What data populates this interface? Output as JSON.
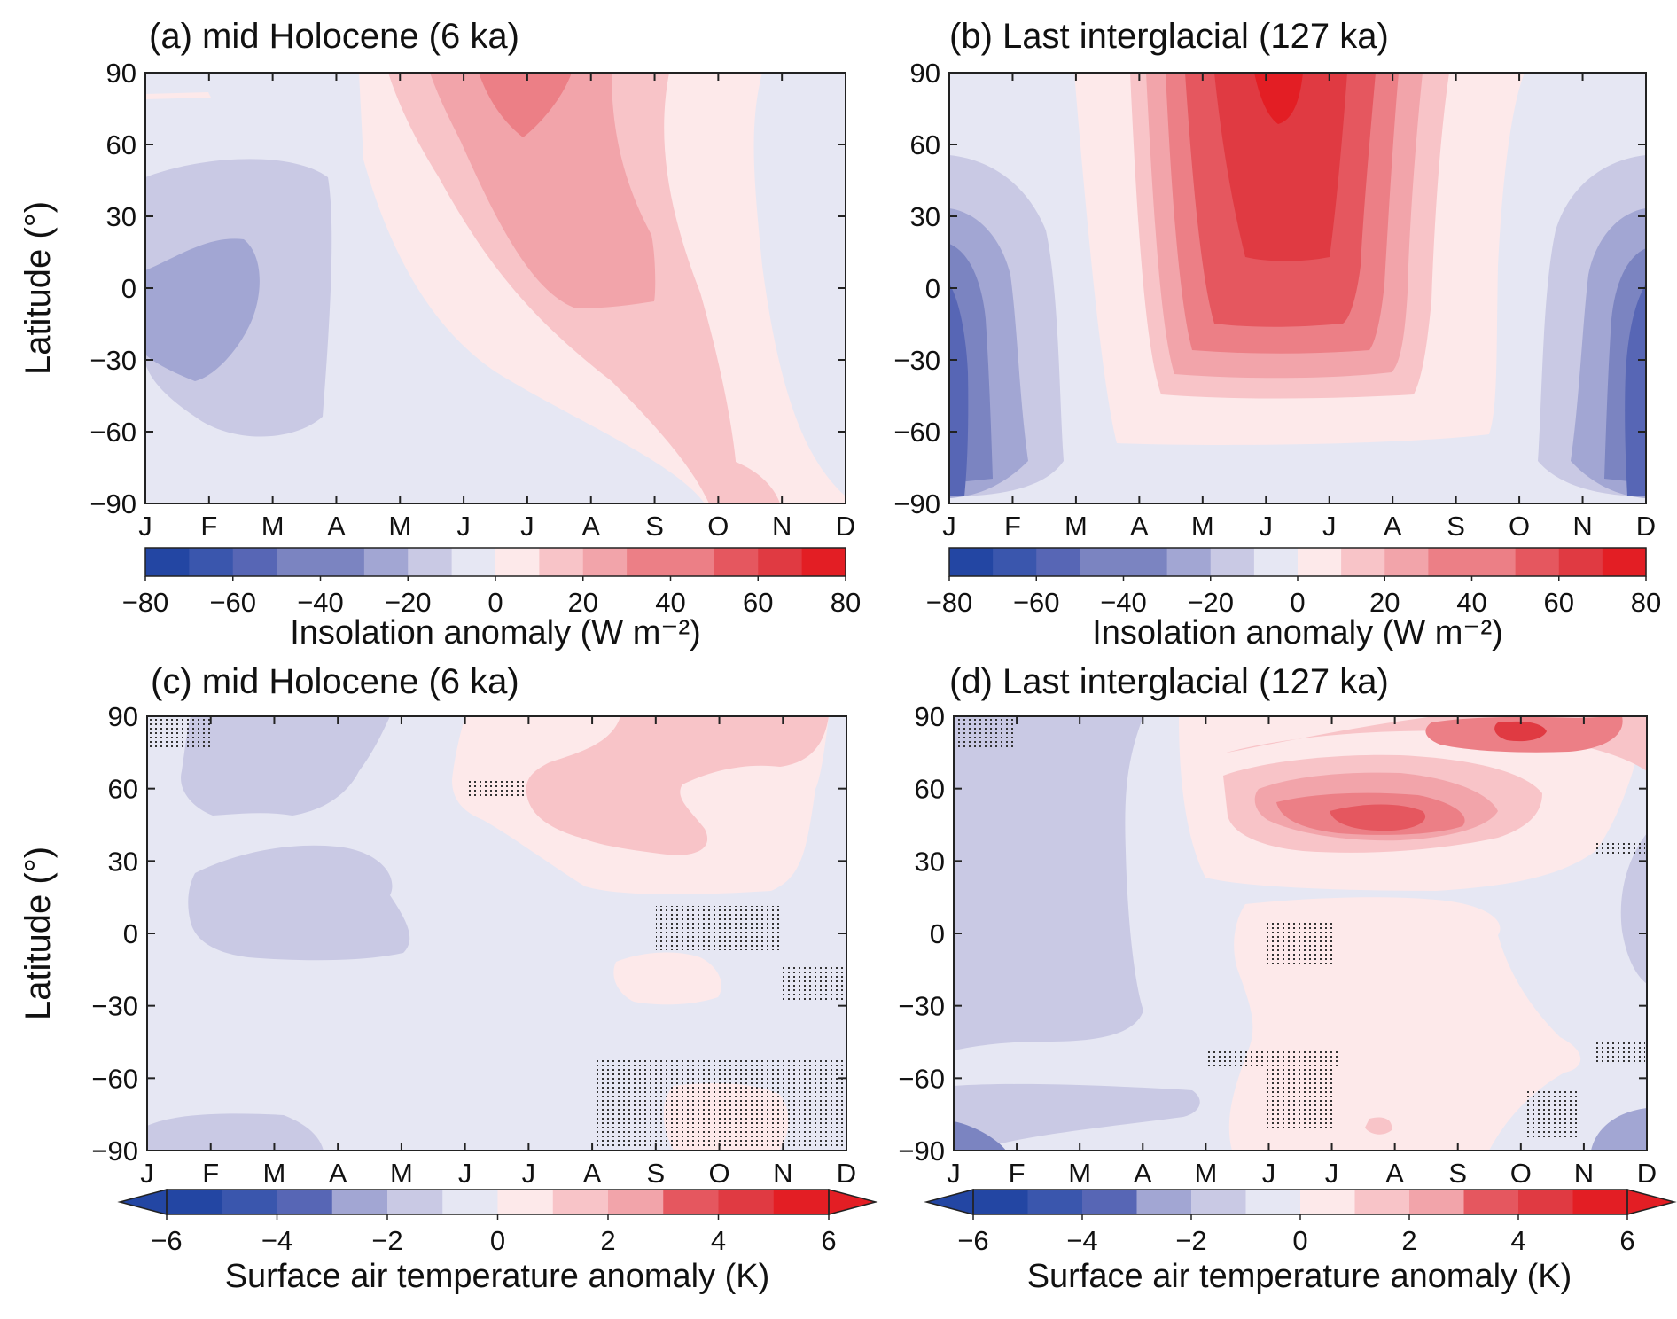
{
  "figure": {
    "palette_blue_to_red": [
      "#2346a3",
      "#3a56ad",
      "#5766b5",
      "#7b84c1",
      "#a2a6d3",
      "#c9c9e4",
      "#e6e7f3",
      "#fde9ea",
      "#f8c4c8",
      "#f2a4aa",
      "#ec7f86",
      "#e5575f",
      "#e03a42",
      "#e31e24"
    ],
    "hatch_color": "#333333"
  },
  "chart_data": [
    {
      "id": "a",
      "type": "heatmap",
      "title": "(a) mid Holocene (6 ka)",
      "xlabel": "",
      "ylabel": "Latitude (°)",
      "x_tick_labels": [
        "J",
        "F",
        "M",
        "A",
        "M",
        "J",
        "J",
        "A",
        "S",
        "O",
        "N",
        "D"
      ],
      "y_ticks": [
        90,
        60,
        30,
        0,
        -30,
        -60,
        -90
      ],
      "y_tick_labels": [
        "90",
        "60",
        "30",
        "0",
        "−30",
        "−60",
        "−90"
      ],
      "ylim": [
        -90,
        90
      ],
      "colorbar": {
        "label": "Insolation anomaly (W m⁻²)",
        "bounds": [
          -80,
          80
        ],
        "step": 10,
        "ticks": [
          -80,
          -60,
          -40,
          -20,
          0,
          20,
          40,
          60,
          80
        ],
        "tick_labels": [
          "−80",
          "−60",
          "−40",
          "−20",
          "0",
          "20",
          "40",
          "60",
          "80"
        ],
        "extend": false
      },
      "grid": false,
      "field_description": "Positive anomaly band runs diagonally from boreal summer at high northern latitudes toward austral spring at high southern latitudes; maximum ~30–40 W m⁻² near 60–90°N in June–July; negative ~−20 to −30 W m⁻² in January–February in the tropics and southern hemisphere"
    },
    {
      "id": "b",
      "type": "heatmap",
      "title": "(b) Last interglacial (127 ka)",
      "xlabel": "",
      "ylabel": "",
      "x_tick_labels": [
        "J",
        "F",
        "M",
        "A",
        "M",
        "J",
        "J",
        "A",
        "S",
        "O",
        "N",
        "D"
      ],
      "y_ticks": [
        90,
        60,
        30,
        0,
        -30,
        -60,
        -90
      ],
      "y_tick_labels": [
        "90",
        "60",
        "30",
        "0",
        "−30",
        "−60",
        "−90"
      ],
      "ylim": [
        -90,
        90
      ],
      "colorbar": {
        "label": "Insolation anomaly (W m⁻²)",
        "bounds": [
          -80,
          80
        ],
        "step": 10,
        "ticks": [
          -80,
          -60,
          -40,
          -20,
          0,
          20,
          40,
          60,
          80
        ],
        "tick_labels": [
          "−80",
          "−60",
          "−40",
          "−20",
          "0",
          "20",
          "40",
          "60",
          "80"
        ],
        "extend": false
      },
      "grid": false,
      "field_description": "Strong positive anomaly centered on June at 60–90°N reaching ~70 W m⁻², extending across the tropics to ~30°S with values 20–60 W m⁻²; strong negative anomaly up to ~−60 W m⁻² in January and December in the tropics and southern hemisphere"
    },
    {
      "id": "c",
      "type": "heatmap",
      "title": "(c) mid Holocene (6 ka)",
      "xlabel": "",
      "ylabel": "Latitude (°)",
      "x_tick_labels": [
        "J",
        "F",
        "M",
        "A",
        "M",
        "J",
        "J",
        "A",
        "S",
        "O",
        "N",
        "D"
      ],
      "y_ticks": [
        90,
        60,
        30,
        0,
        -30,
        -60,
        -90
      ],
      "y_tick_labels": [
        "90",
        "60",
        "30",
        "0",
        "−30",
        "−60",
        "−90"
      ],
      "ylim": [
        -90,
        90
      ],
      "colorbar": {
        "label": "Surface air temperature anomaly (K)",
        "bounds": [
          -6,
          6
        ],
        "step": 1,
        "ticks": [
          -6,
          -4,
          -2,
          0,
          2,
          4,
          6
        ],
        "tick_labels": [
          "−6",
          "−4",
          "−2",
          "0",
          "2",
          "4",
          "6"
        ],
        "extend": "both"
      },
      "grid": false,
      "field_description": "Warming of 1–2 K in northern mid-high latitudes from June to December; cooling of about −1 to −2 K in the northern tropics and high latitudes from January to May; stippling marks regions that are not significant"
    },
    {
      "id": "d",
      "type": "heatmap",
      "title": "(d) Last interglacial (127 ka)",
      "xlabel": "",
      "ylabel": "",
      "x_tick_labels": [
        "J",
        "F",
        "M",
        "A",
        "M",
        "J",
        "J",
        "A",
        "S",
        "O",
        "N",
        "D"
      ],
      "y_ticks": [
        90,
        60,
        30,
        0,
        -30,
        -60,
        -90
      ],
      "y_tick_labels": [
        "90",
        "60",
        "30",
        "0",
        "−30",
        "−60",
        "−90"
      ],
      "ylim": [
        -90,
        90
      ],
      "colorbar": {
        "label": "Surface air temperature anomaly (K)",
        "bounds": [
          -6,
          6
        ],
        "step": 1,
        "ticks": [
          -6,
          -4,
          -2,
          0,
          2,
          4,
          6
        ],
        "tick_labels": [
          "−6",
          "−4",
          "−2",
          "0",
          "2",
          "4",
          "6"
        ],
        "extend": "both"
      },
      "grid": false,
      "field_description": "Strong warming of up to 4–5 K near 45°N in July–August and near 80°N in October; weak warming 0–1 K across the tropics and southern hemisphere from June to November; cooling of −1 to −3 K in January–April; stippling marks regions that are not significant"
    }
  ]
}
